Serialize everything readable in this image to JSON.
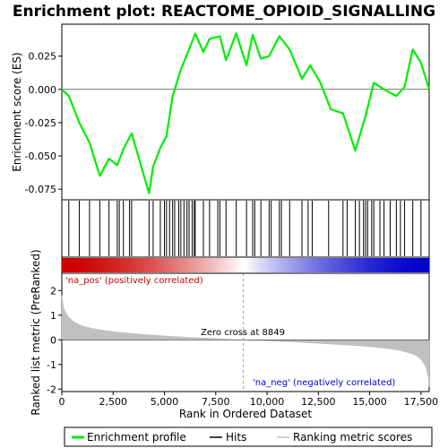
{
  "chart_data": {
    "type": "line",
    "title": "Enrichment plot: REACTOME_OPIOID_SIGNALLING",
    "n_genes": 17900,
    "top_panel": {
      "ylabel": "Enrichment score (ES)",
      "ylim": [
        -0.083,
        0.049
      ],
      "yticks": [
        -0.075,
        -0.05,
        -0.025,
        0.0,
        0.025
      ],
      "ytick_labels": [
        "-0.075",
        "-0.050",
        "-0.025",
        "0.000",
        "0.025"
      ],
      "series": [
        {
          "name": "Enrichment profile",
          "color": "#00ee00",
          "x": [
            0,
            340,
            850,
            1350,
            1850,
            2300,
            2700,
            3000,
            3400,
            4250,
            4450,
            4800,
            5100,
            5400,
            5800,
            6200,
            6500,
            6900,
            7200,
            7700,
            8000,
            8500,
            9000,
            9300,
            9700,
            10100,
            10600,
            11100,
            11700,
            12100,
            12600,
            13100,
            13700,
            14300,
            14800,
            15200,
            15700,
            16300,
            16700,
            17100,
            17500,
            17900
          ],
          "y": [
            0.0,
            -0.005,
            -0.025,
            -0.04,
            -0.065,
            -0.052,
            -0.057,
            -0.045,
            -0.033,
            -0.078,
            -0.058,
            -0.044,
            -0.035,
            -0.005,
            0.015,
            0.03,
            0.042,
            0.028,
            0.038,
            0.04,
            0.022,
            0.042,
            0.018,
            0.041,
            0.023,
            0.025,
            0.04,
            0.03,
            0.008,
            0.018,
            0.005,
            -0.015,
            -0.018,
            -0.046,
            -0.02,
            0.005,
            0.0,
            -0.005,
            0.002,
            0.03,
            0.02,
            0.0
          ]
        }
      ]
    },
    "hits": [
      340,
      850,
      1350,
      1850,
      2300,
      2700,
      2800,
      3000,
      3300,
      3400,
      4250,
      4450,
      4800,
      5000,
      5100,
      5250,
      5400,
      5500,
      5700,
      5800,
      5950,
      6100,
      6200,
      6350,
      6450,
      6500,
      6900,
      7200,
      7600,
      7700,
      8000,
      8500,
      9000,
      9300,
      9400,
      9700,
      10100,
      10200,
      10600,
      10700,
      11100,
      11700,
      12000,
      12200,
      13000,
      13700,
      13900,
      14300,
      14500,
      14700,
      14800,
      14900,
      15100,
      15200,
      15500,
      15700,
      16000,
      16300,
      16500,
      16700,
      17100,
      17500
    ],
    "hit_color": "#000000",
    "bottom_panel": {
      "ylabel": "Ranked list metric (PreRanked)",
      "xlabel": "Rank in Ordered Dataset",
      "ylim": [
        -2.1,
        2.7
      ],
      "yticks": [
        2,
        1,
        0,
        -1,
        -2
      ],
      "xticks": [
        0,
        2500,
        5000,
        7500,
        10000,
        12500,
        15000,
        17500
      ],
      "xtick_labels": [
        "0",
        "2,500",
        "5,000",
        "7,500",
        "10,000",
        "12,500",
        "15,000",
        "17,500"
      ],
      "metric_curve": {
        "name": "Ranking metric scores",
        "color": "#c0c0c0",
        "x": [
          0,
          100,
          300,
          600,
          1000,
          1500,
          2000,
          3000,
          4000,
          5000,
          6000,
          7000,
          8000,
          8849,
          10000,
          11000,
          12000,
          13000,
          14000,
          15000,
          16000,
          16500,
          17000,
          17300,
          17500,
          17650,
          17750,
          17850,
          17900
        ],
        "y": [
          1.8,
          1.25,
          0.95,
          0.72,
          0.57,
          0.46,
          0.39,
          0.29,
          0.22,
          0.16,
          0.11,
          0.07,
          0.03,
          0.0,
          -0.04,
          -0.08,
          -0.12,
          -0.17,
          -0.22,
          -0.28,
          -0.37,
          -0.44,
          -0.55,
          -0.66,
          -0.8,
          -0.98,
          -1.15,
          -1.5,
          -1.9
        ]
      },
      "zero_cross_label": "Zero cross at 8849",
      "zero_cross": 8849,
      "pos_label": "'na_pos' (positively correlated)",
      "neg_label": "'na_neg' (negatively correlated)",
      "pos_color": "#cc0000",
      "neg_color": "#0000cc"
    },
    "legend": {
      "placement": "bottom",
      "items": [
        {
          "label": "Enrichment profile",
          "color": "#00ee00"
        },
        {
          "label": "Hits",
          "color": "#000000"
        },
        {
          "label": "Ranking metric scores",
          "color": "#c0c0c0"
        }
      ]
    }
  }
}
